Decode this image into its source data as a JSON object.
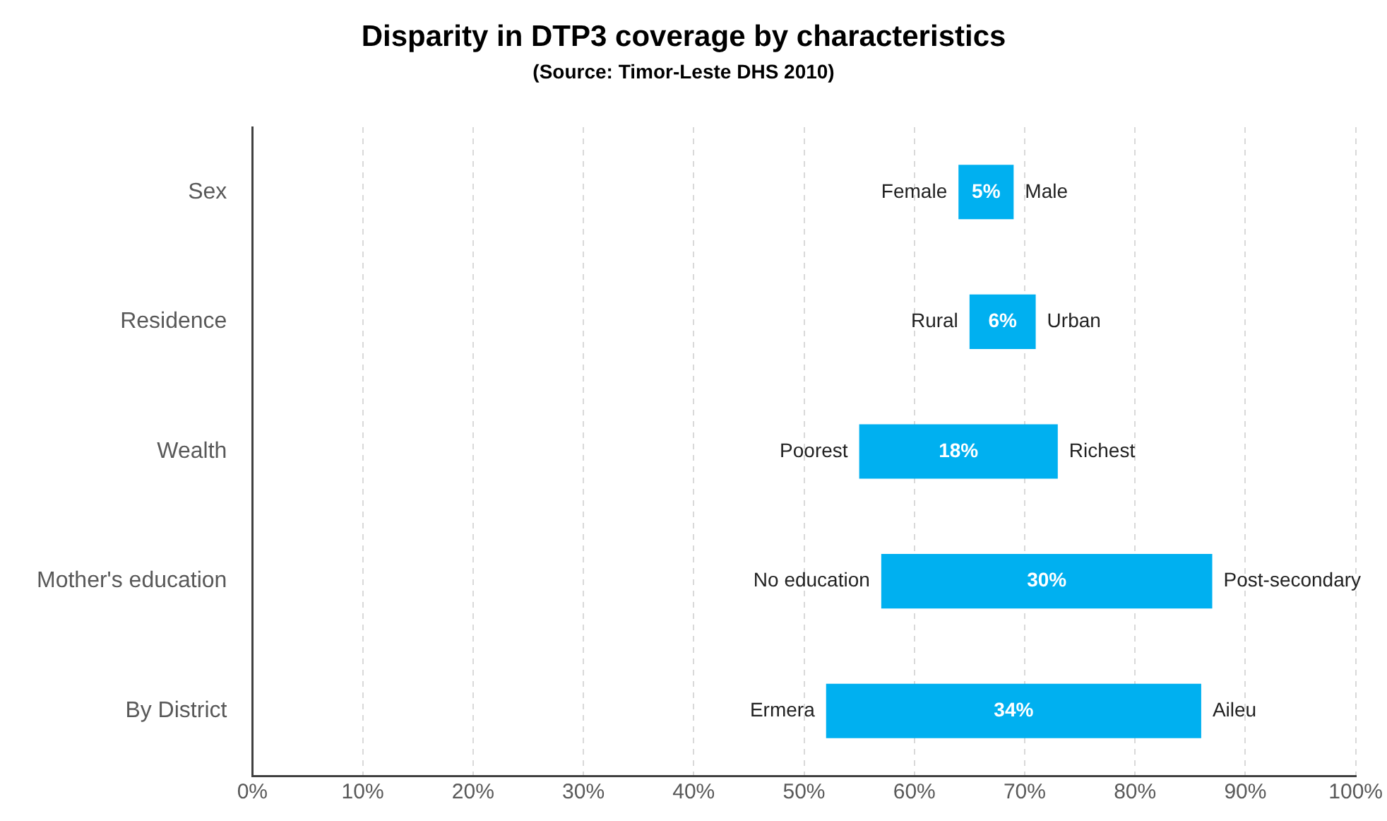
{
  "chart_data": {
    "type": "bar",
    "orientation": "horizontal",
    "title": "Disparity in DTP3 coverage by characteristics",
    "subtitle": "(Source: Timor-Leste DHS 2010)",
    "categories": [
      "Sex",
      "Residence",
      "Wealth",
      "Mother's education",
      "By District"
    ],
    "base": [
      64,
      65,
      55,
      57,
      52
    ],
    "values": [
      5,
      6,
      18,
      30,
      34
    ],
    "value_labels": [
      "5%",
      "6%",
      "18%",
      "30%",
      "34%"
    ],
    "color": "#00b0f0",
    "xlim": [
      0,
      100
    ],
    "xticks": [
      {
        "value": 0,
        "label": "0%"
      },
      {
        "value": 10,
        "label": "10%"
      },
      {
        "value": 20,
        "label": "20%"
      },
      {
        "value": 30,
        "label": "30%"
      },
      {
        "value": 40,
        "label": "40%"
      },
      {
        "value": 50,
        "label": "50%"
      },
      {
        "value": 60,
        "label": "60%"
      },
      {
        "value": 70,
        "label": "70%"
      },
      {
        "value": 80,
        "label": "80%"
      },
      {
        "value": 90,
        "label": "90%"
      },
      {
        "value": 100,
        "label": "100%"
      }
    ],
    "grid": "x",
    "annotations": [
      {
        "text": "Female",
        "x": 64,
        "y": "Sex"
      },
      {
        "text": "Male",
        "x": 69,
        "y": "Sex"
      },
      {
        "text": "Rural",
        "x": 65,
        "y": "Residence"
      },
      {
        "text": "Urban",
        "x": 71,
        "y": "Residence"
      },
      {
        "text": "Poorest",
        "x": 55,
        "y": "Wealth"
      },
      {
        "text": "Richest",
        "x": 73,
        "y": "Wealth"
      },
      {
        "text": "No education",
        "x": 57,
        "y": "Mother's education"
      },
      {
        "text": "Post-secondary",
        "x": 87,
        "y": "Mother's education"
      },
      {
        "text": "Ermera",
        "x": 52,
        "y": "By District"
      },
      {
        "text": "Aileu",
        "x": 86,
        "y": "By District"
      }
    ]
  }
}
